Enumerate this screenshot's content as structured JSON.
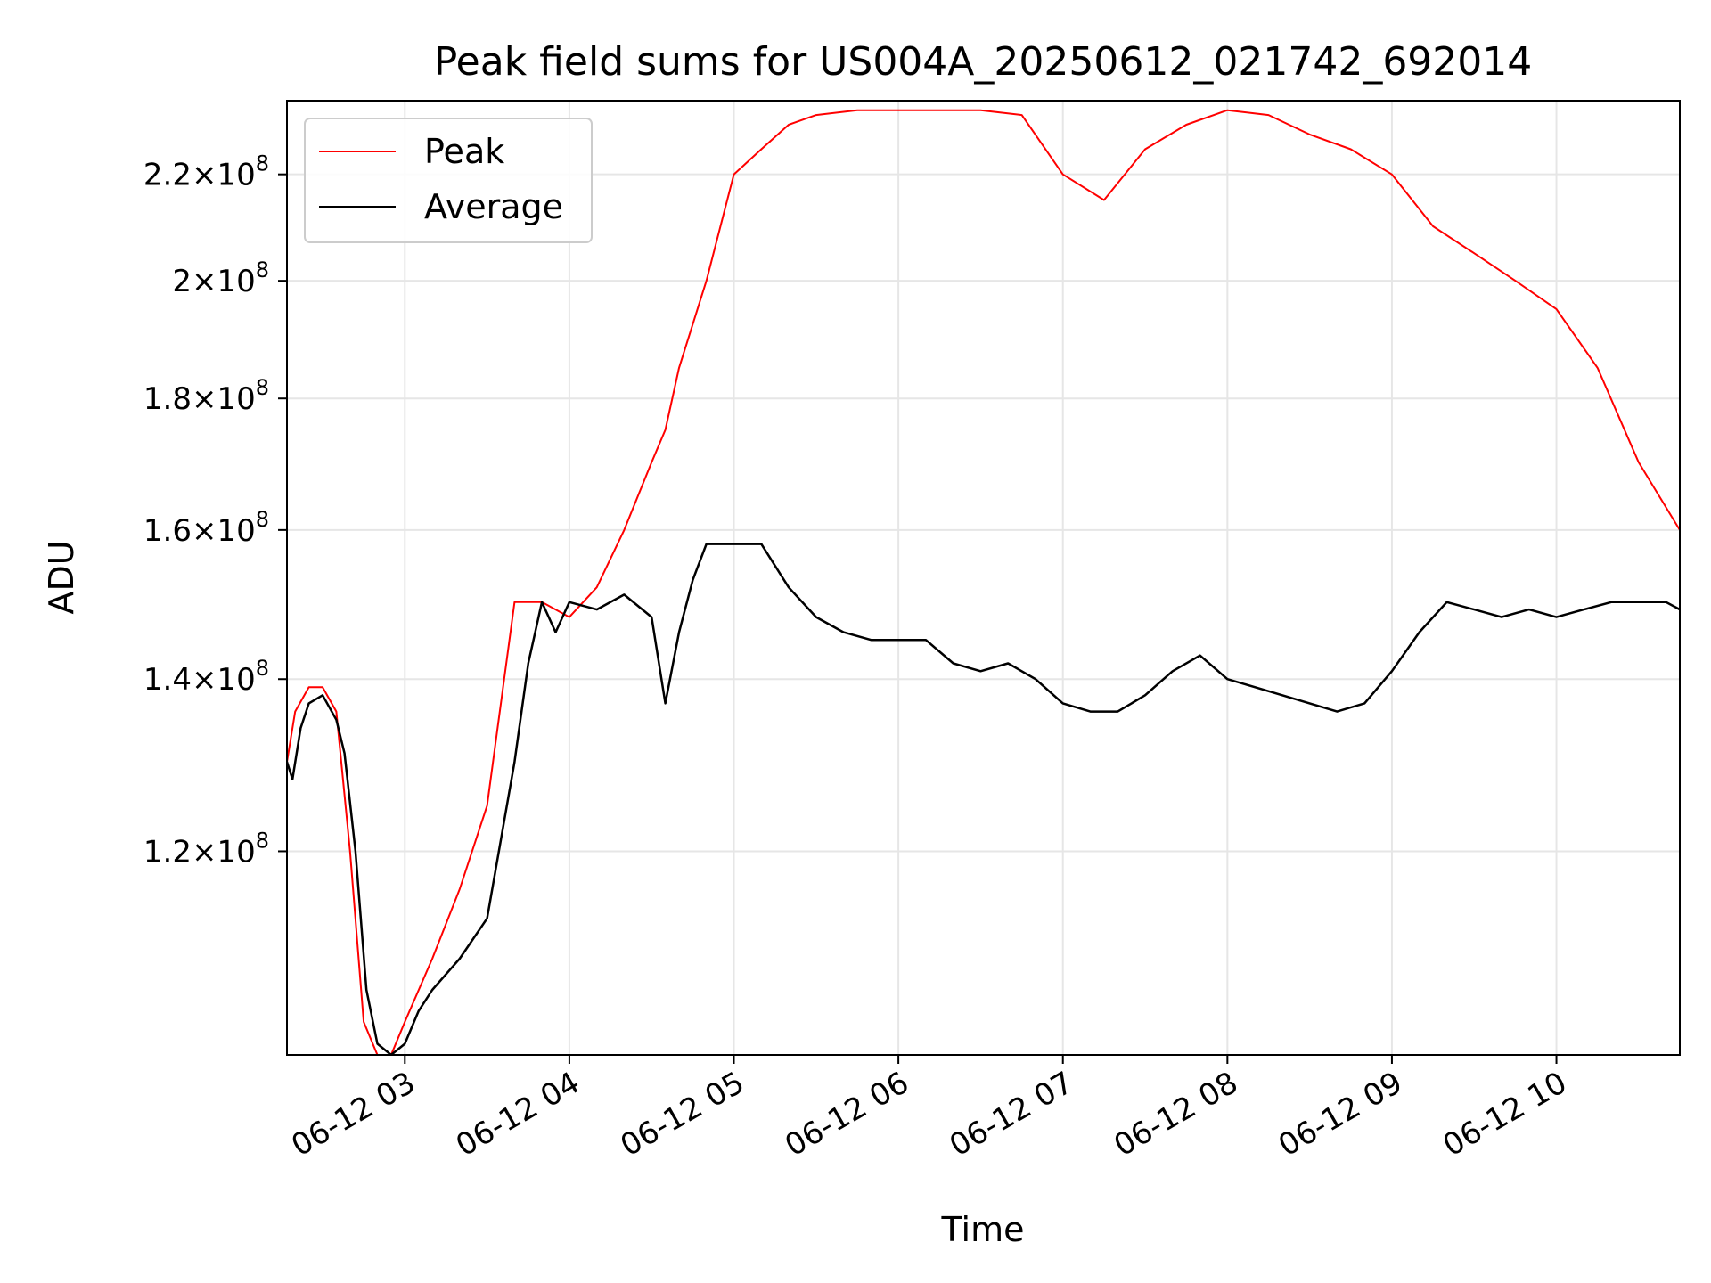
{
  "chart_data": {
    "type": "line",
    "title": "Peak field sums for US004A_20250612_021742_692014",
    "xlabel": "Time",
    "ylabel": "ADU",
    "x_range": [
      "06-12 02:17",
      "06-12 10:45"
    ],
    "y_scale": "log",
    "ylim": [
      100000000,
      235000000
    ],
    "grid": true,
    "legend_position": "upper-left",
    "x_ticks": [
      "06-12 03",
      "06-12 04",
      "06-12 05",
      "06-12 06",
      "06-12 07",
      "06-12 08",
      "06-12 09",
      "06-12 10"
    ],
    "y_ticks": [
      {
        "value": 120000000,
        "mantissa": "1.2",
        "base": "10",
        "exp": "8"
      },
      {
        "value": 140000000,
        "mantissa": "1.4",
        "base": "10",
        "exp": "8"
      },
      {
        "value": 160000000,
        "mantissa": "1.6",
        "base": "10",
        "exp": "8"
      },
      {
        "value": 180000000,
        "mantissa": "1.8",
        "base": "10",
        "exp": "8"
      },
      {
        "value": 200000000,
        "mantissa": "2",
        "base": "10",
        "exp": "8"
      },
      {
        "value": 220000000,
        "mantissa": "2.2",
        "base": "10",
        "exp": "8"
      }
    ],
    "series": [
      {
        "name": "Peak",
        "color": "#ff0000",
        "x": [
          "02:17",
          "02:20",
          "02:25",
          "02:30",
          "02:35",
          "02:40",
          "02:45",
          "02:50",
          "02:55",
          "03:00",
          "03:10",
          "03:20",
          "03:30",
          "03:40",
          "03:50",
          "04:00",
          "04:10",
          "04:20",
          "04:30",
          "04:35",
          "04:40",
          "04:50",
          "05:00",
          "05:10",
          "05:20",
          "05:30",
          "05:45",
          "06:00",
          "06:15",
          "06:30",
          "06:45",
          "07:00",
          "07:15",
          "07:30",
          "07:45",
          "08:00",
          "08:15",
          "08:30",
          "08:45",
          "09:00",
          "09:15",
          "09:30",
          "09:45",
          "10:00",
          "10:15",
          "10:30",
          "10:45"
        ],
        "y": [
          130000000,
          136000000,
          139000000,
          139000000,
          136000000,
          120000000,
          103000000,
          100000000,
          100000000,
          103000000,
          109000000,
          116000000,
          125000000,
          150000000,
          150000000,
          148000000,
          152000000,
          160000000,
          170000000,
          175000000,
          185000000,
          200000000,
          220000000,
          225000000,
          230000000,
          232000000,
          233000000,
          233000000,
          233000000,
          233000000,
          232000000,
          220000000,
          215000000,
          225000000,
          230000000,
          233000000,
          232000000,
          228000000,
          225000000,
          220000000,
          210000000,
          205000000,
          200000000,
          195000000,
          185000000,
          170000000,
          160000000
        ]
      },
      {
        "name": "Average",
        "color": "#000000",
        "x": [
          "02:17",
          "02:19",
          "02:22",
          "02:25",
          "02:30",
          "02:35",
          "02:38",
          "02:42",
          "02:46",
          "02:50",
          "02:55",
          "03:00",
          "03:05",
          "03:10",
          "03:20",
          "03:30",
          "03:40",
          "03:45",
          "03:50",
          "03:55",
          "04:00",
          "04:10",
          "04:20",
          "04:30",
          "04:35",
          "04:40",
          "04:45",
          "04:50",
          "05:00",
          "05:10",
          "05:20",
          "05:30",
          "05:40",
          "05:50",
          "06:00",
          "06:10",
          "06:20",
          "06:30",
          "06:40",
          "06:50",
          "07:00",
          "07:10",
          "07:20",
          "07:30",
          "07:40",
          "07:50",
          "08:00",
          "08:10",
          "08:20",
          "08:30",
          "08:40",
          "08:50",
          "09:00",
          "09:10",
          "09:20",
          "09:30",
          "09:40",
          "09:50",
          "10:00",
          "10:10",
          "10:20",
          "10:30",
          "10:40",
          "10:45"
        ],
        "y": [
          130000000,
          128000000,
          134000000,
          137000000,
          138000000,
          135000000,
          131000000,
          120000000,
          106000000,
          101000000,
          100000000,
          101000000,
          104000000,
          106000000,
          109000000,
          113000000,
          130000000,
          142000000,
          150000000,
          146000000,
          150000000,
          149000000,
          151000000,
          148000000,
          137000000,
          146000000,
          153000000,
          158000000,
          158000000,
          158000000,
          152000000,
          148000000,
          146000000,
          145000000,
          145000000,
          145000000,
          142000000,
          141000000,
          142000000,
          140000000,
          137000000,
          136000000,
          136000000,
          138000000,
          141000000,
          143000000,
          140000000,
          139000000,
          138000000,
          137000000,
          136000000,
          137000000,
          141000000,
          146000000,
          150000000,
          149000000,
          148000000,
          149000000,
          148000000,
          149000000,
          150000000,
          150000000,
          150000000,
          149000000
        ]
      }
    ]
  }
}
